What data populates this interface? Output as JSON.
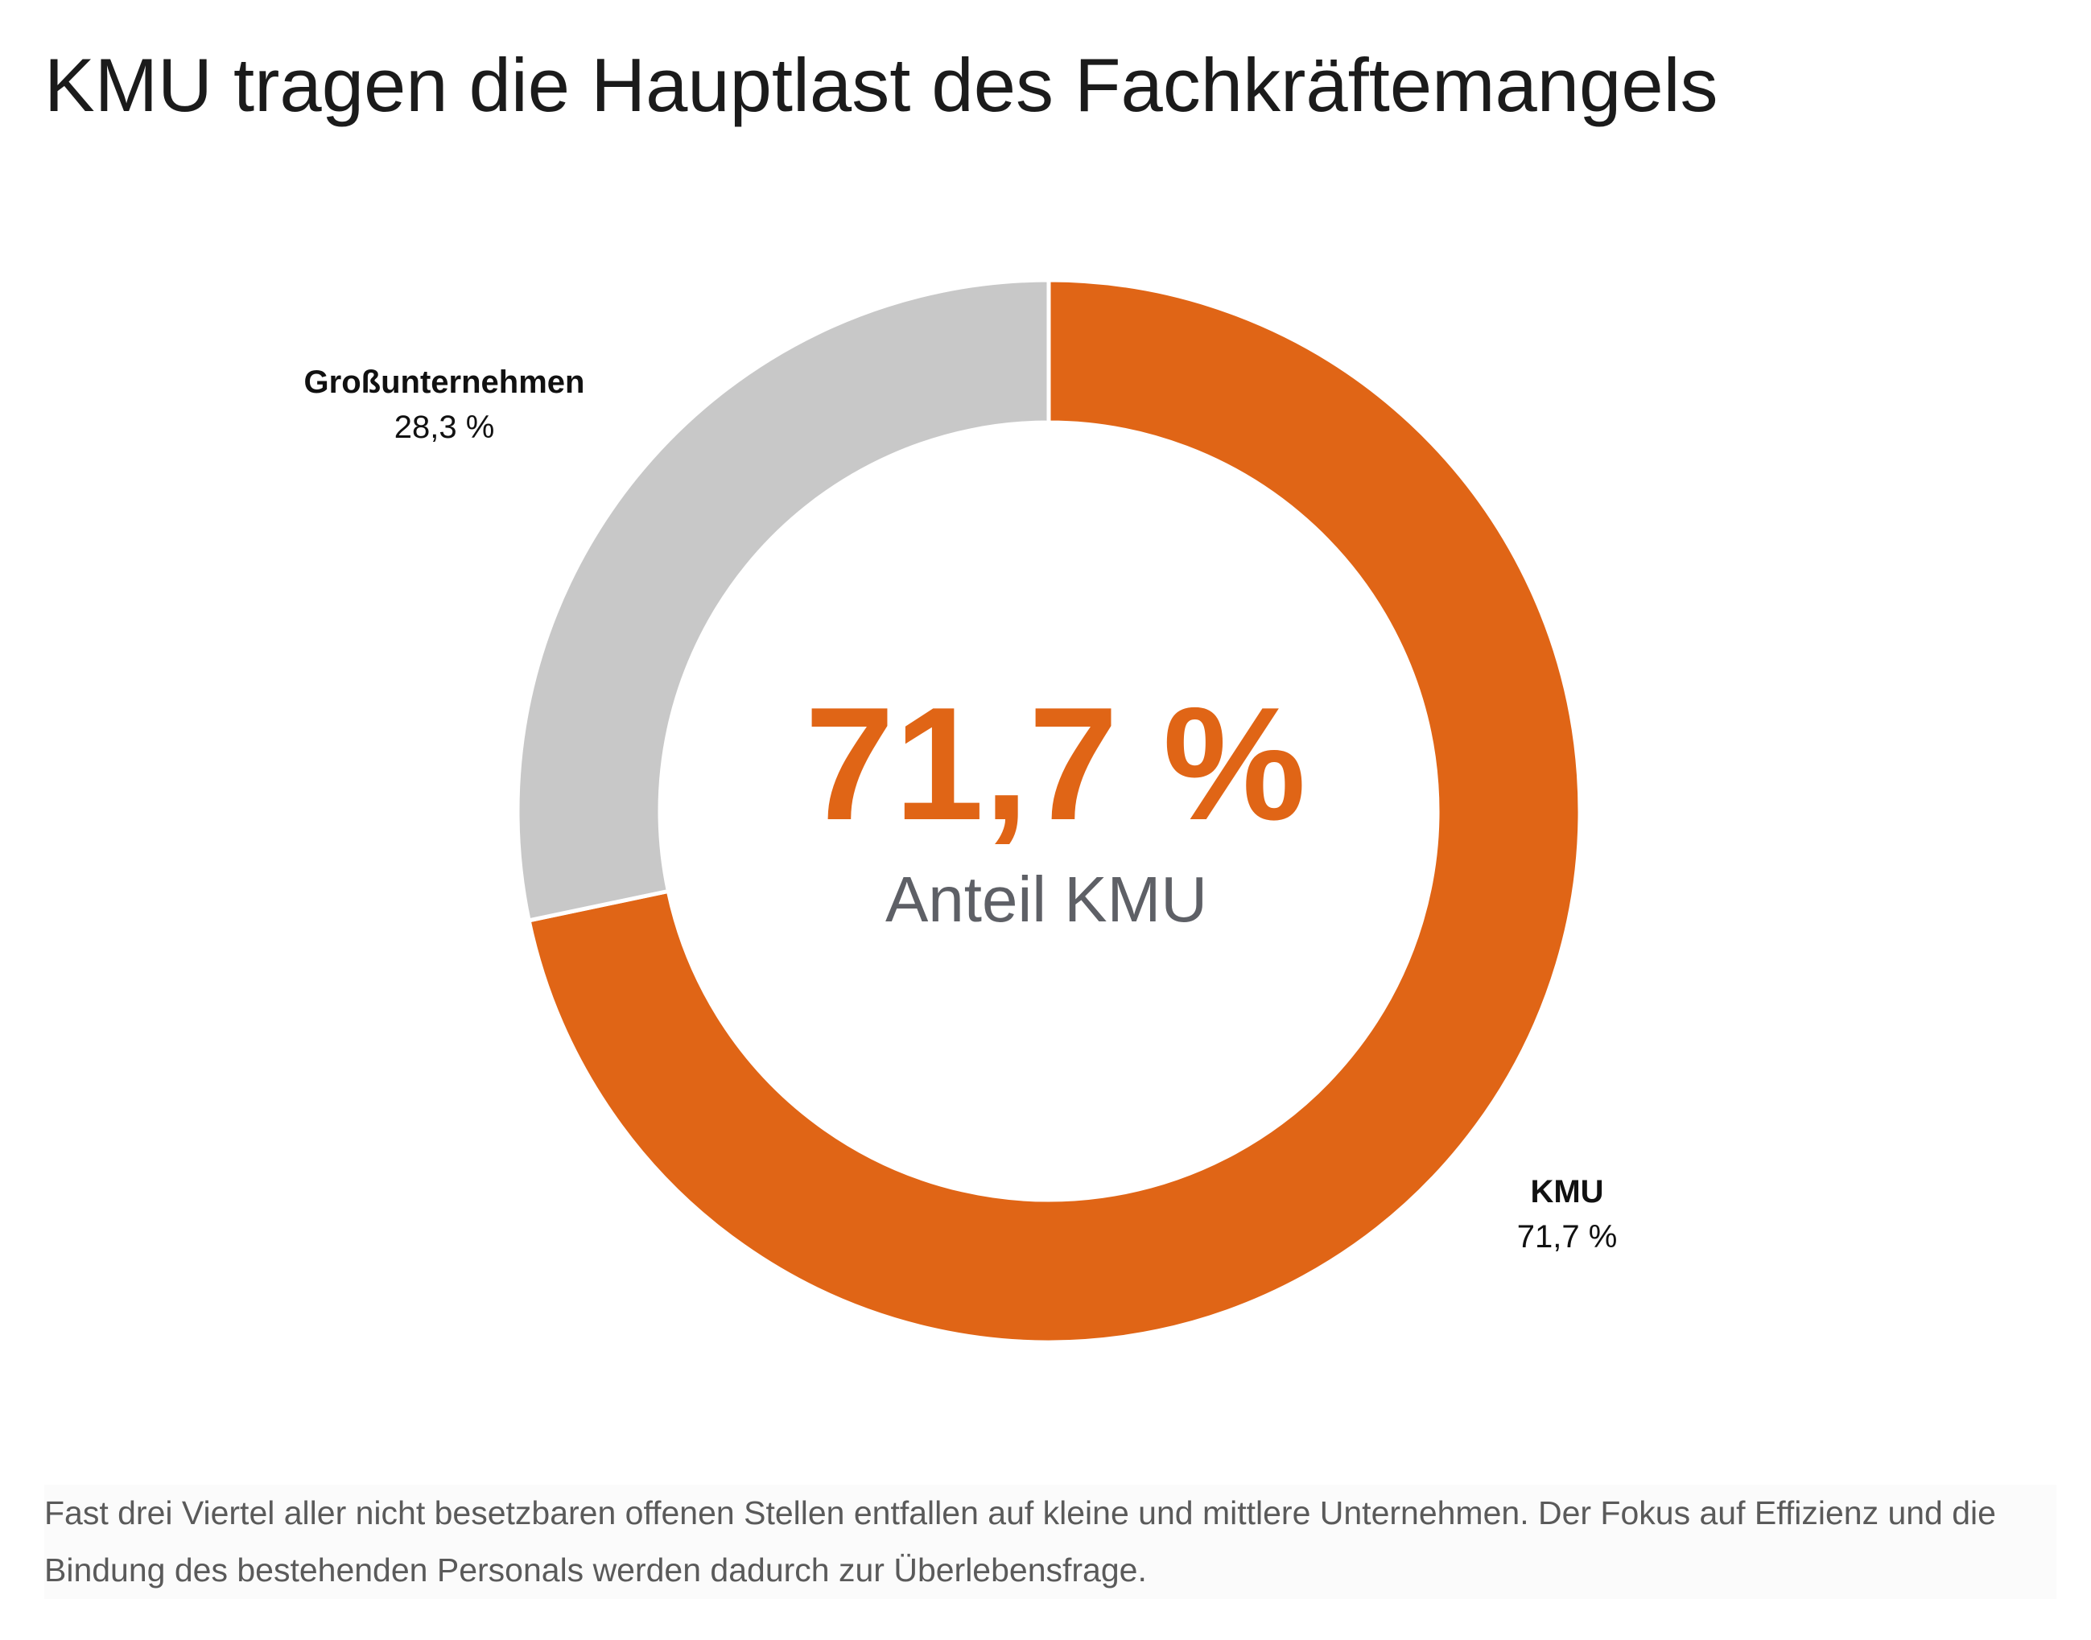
{
  "title": "KMU tragen die Hauptlast des Fachkräftemangels",
  "colors": {
    "kmu": "#e06516",
    "grossunternehmen": "#c8c8c8",
    "title": "#1b1b1b",
    "caption": "#5e6066",
    "note": "#5a5a5a"
  },
  "chart_data": {
    "type": "pie",
    "variant": "donut",
    "slices": [
      {
        "name": "KMU",
        "value": 71.7,
        "label": "71,7 %"
      },
      {
        "name": "Großunternehmen",
        "value": 28.3,
        "label": "28,3 %"
      }
    ],
    "start": "top",
    "direction": "clockwise",
    "center_value": "71,7 %",
    "center_caption": "Anteil KMU"
  },
  "note": "Fast drei Viertel aller nicht besetzbaren offenen Stellen entfallen auf kleine und mittlere Unternehmen. Der Fokus auf Effizienz und die Bindung des bestehenden Personals werden dadurch zur Überlebensfrage."
}
